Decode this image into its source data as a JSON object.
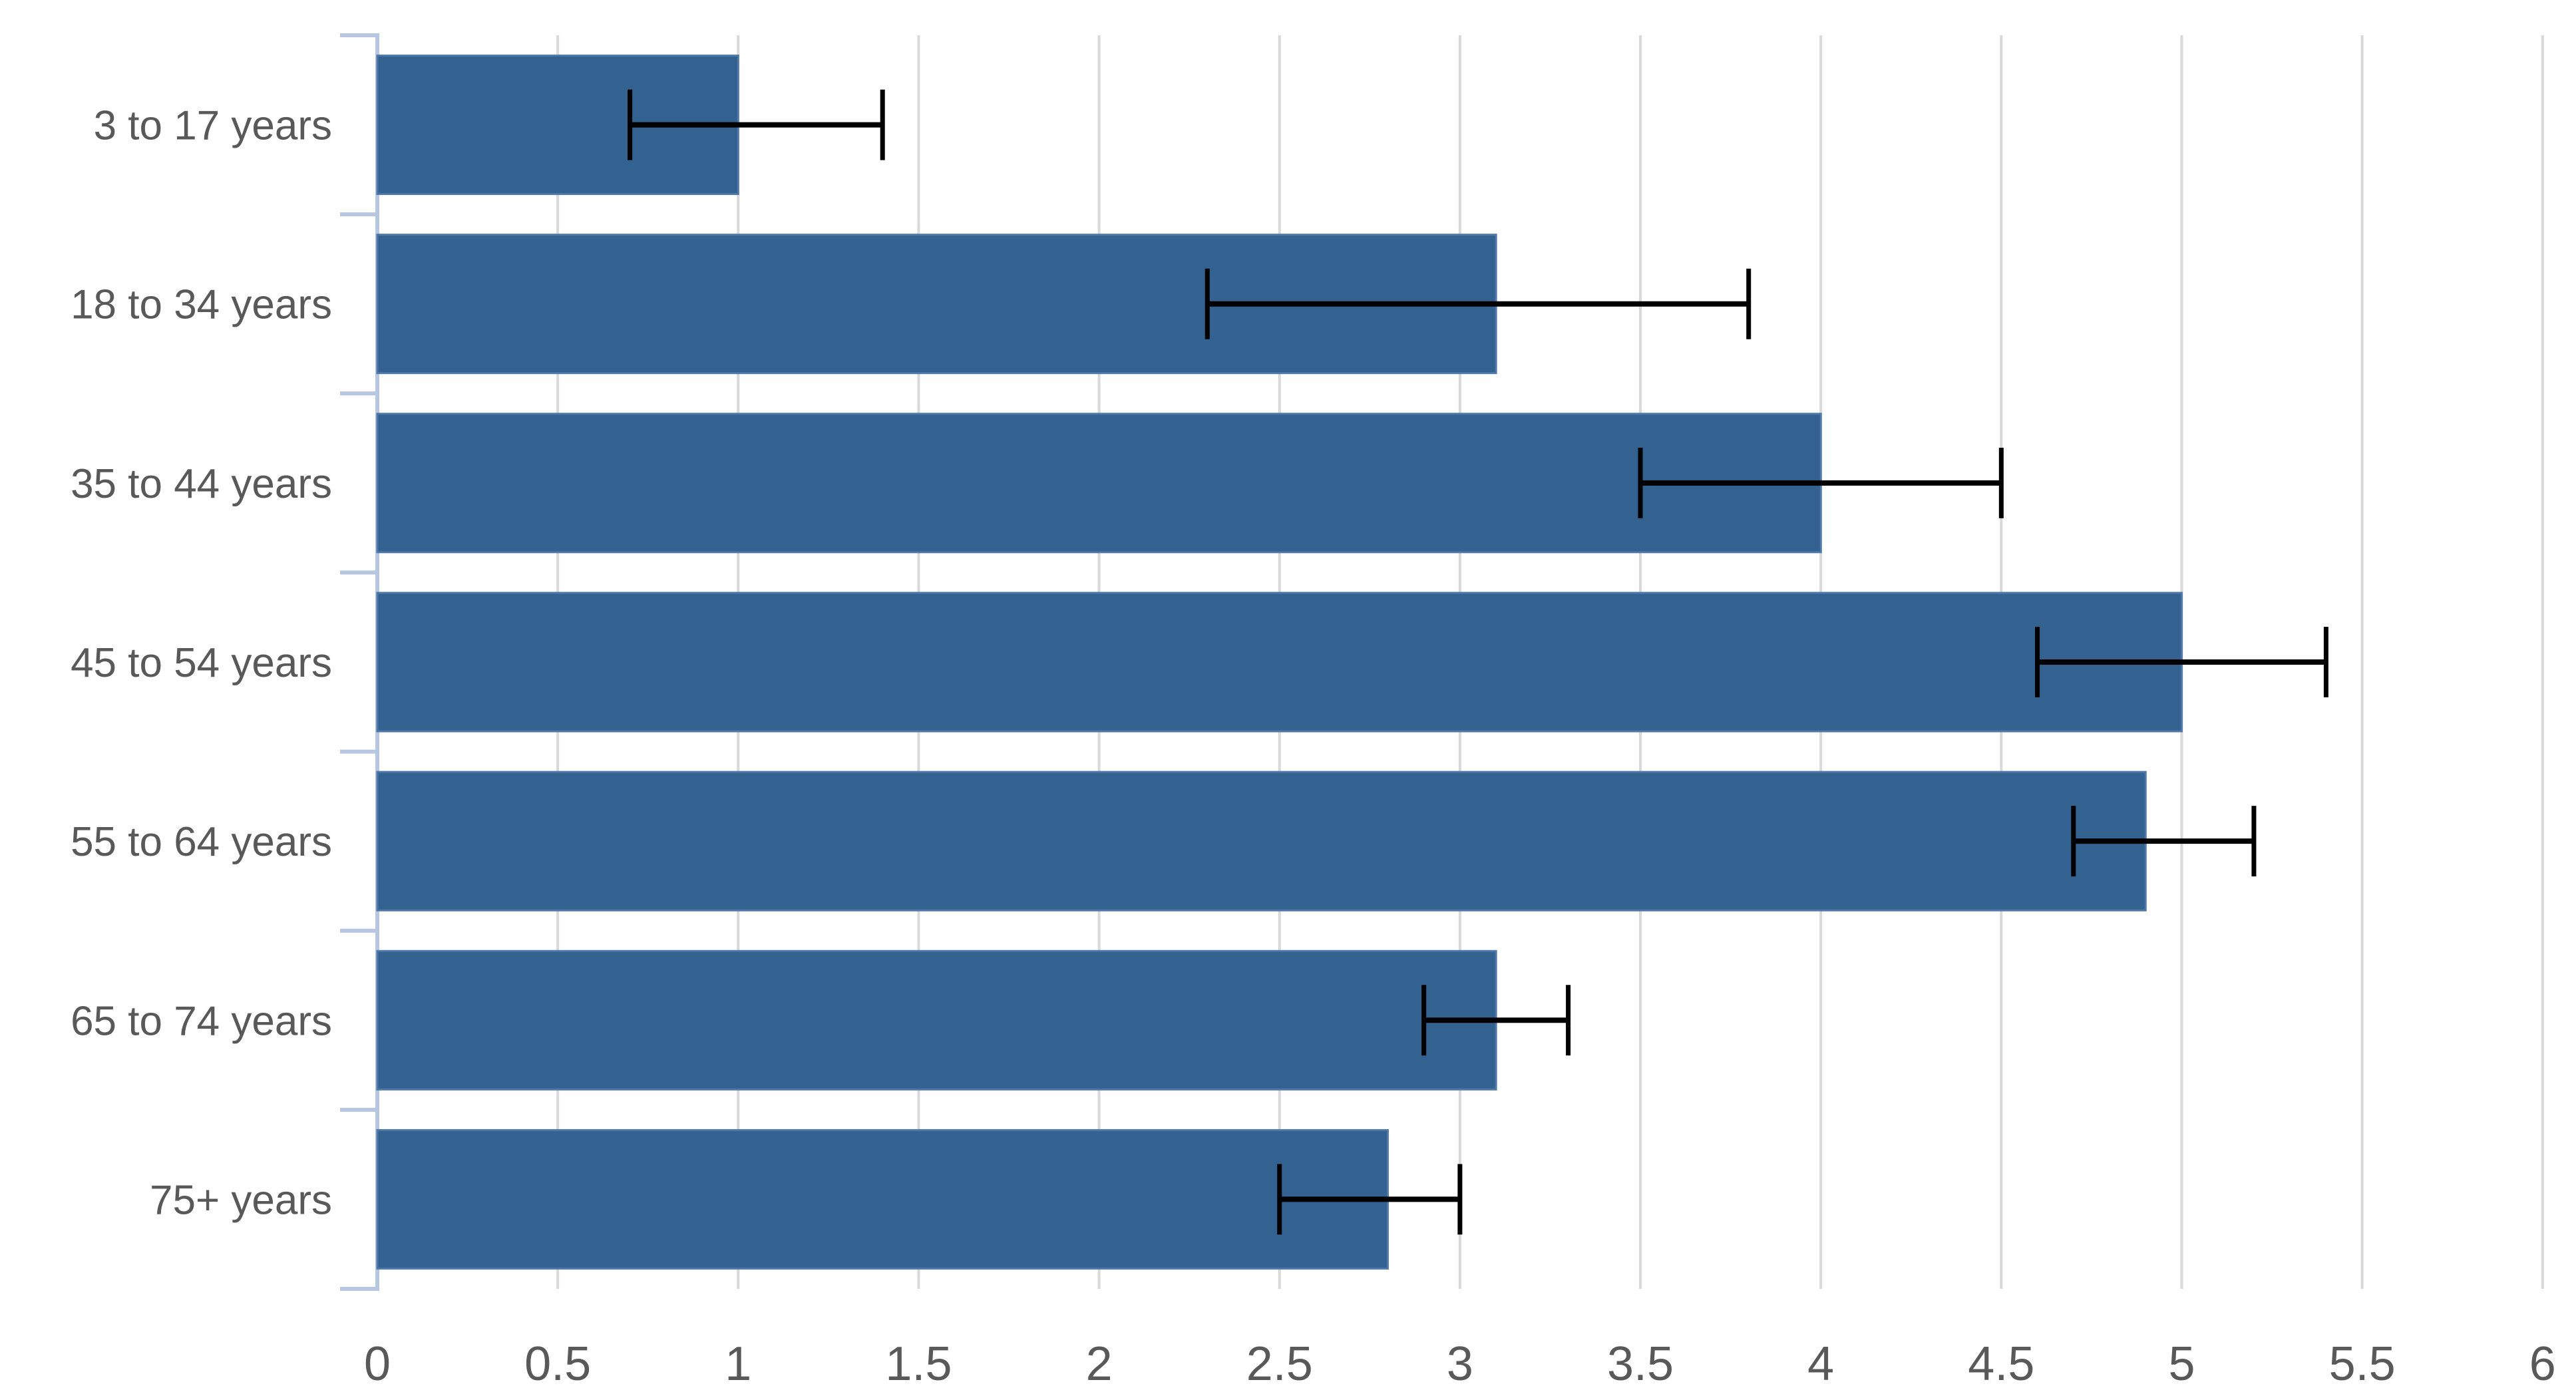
{
  "chart_data": {
    "type": "bar",
    "orientation": "horizontal",
    "categories": [
      "3 to 17 years",
      "18 to 34 years",
      "35 to 44 years",
      "45 to 54 years",
      "55 to 64 years",
      "65 to 74 years",
      "75+ years"
    ],
    "values": [
      1.0,
      3.1,
      4.0,
      5.0,
      4.9,
      3.1,
      2.8
    ],
    "error_low": [
      0.7,
      2.3,
      3.5,
      4.6,
      4.7,
      2.9,
      2.5
    ],
    "error_high": [
      1.4,
      3.8,
      4.5,
      5.4,
      5.2,
      3.3,
      3.0
    ],
    "xlim": [
      0,
      6
    ],
    "x_tick_step": 0.5,
    "x_tick_labels": [
      "0",
      "0.5",
      "1",
      "1.5",
      "2",
      "2.5",
      "3",
      "3.5",
      "4",
      "4.5",
      "5",
      "5.5",
      "6"
    ],
    "grid": true,
    "legend": false,
    "has_error_bars": true,
    "colors": {
      "bar_fill": "#336190",
      "bar_edge": "#4f78a8",
      "error_bar": "#000000",
      "gridline": "#d9d9d9",
      "axis_line": "#b7c6e1",
      "tick_label": "#595959",
      "background": "#ffffff"
    }
  }
}
